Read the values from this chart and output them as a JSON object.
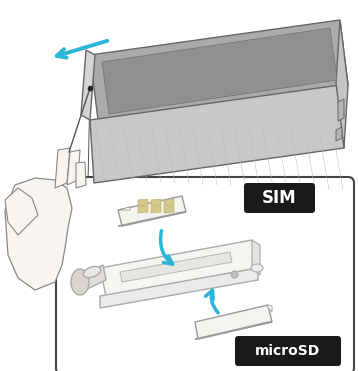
{
  "bg_color": "#ffffff",
  "box_bg": "#ffffff",
  "box_edge": "#444444",
  "label_bg": "#1a1a1a",
  "label_text": "#ffffff",
  "sim_label": "SIM",
  "microsd_label": "microSD",
  "arrow_color": "#2bb5d8",
  "phone_screen": "#aaaaaa",
  "phone_body": "#dddddd",
  "phone_side": "#cccccc",
  "phone_edge_color": "#666666",
  "hand_fill": "#f8f4f0",
  "hand_edge": "#888888",
  "tray_fill": "#f8f6f3",
  "tray_edge": "#aaaaaa",
  "card_fill": "#f5f3f0",
  "card_edge": "#999999",
  "hatch_color": "#bbbbbb"
}
